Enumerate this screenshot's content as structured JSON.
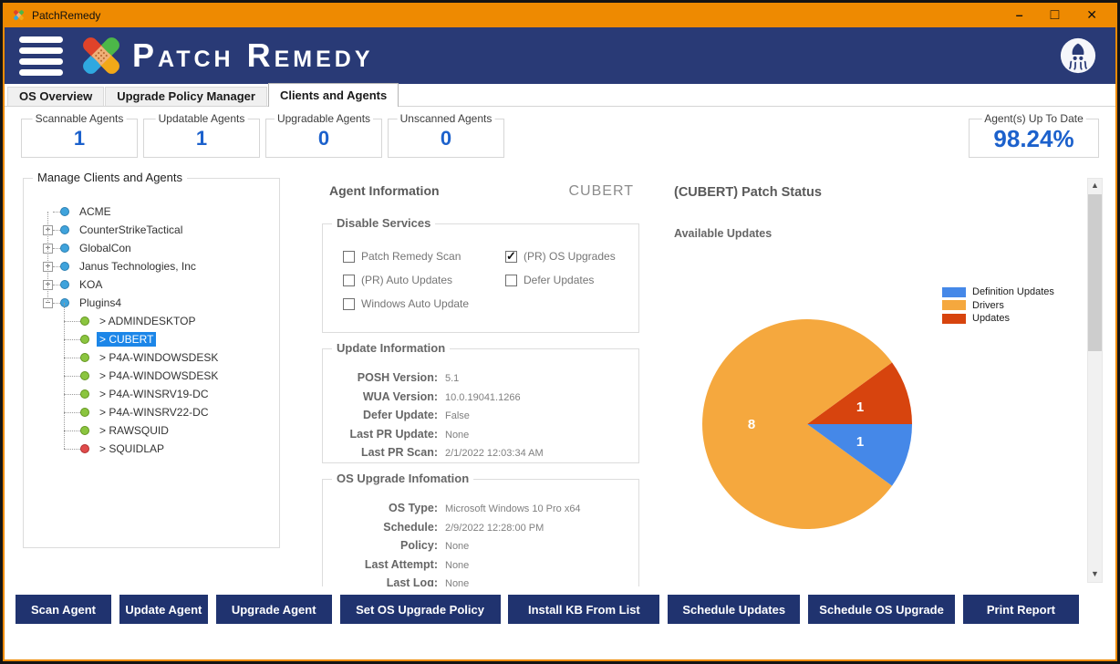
{
  "window": {
    "title": "PatchRemedy"
  },
  "icons": {
    "minimize": "–",
    "maximize": "□",
    "close": "✕",
    "expand": "+",
    "collapse": "−",
    "check": "✓",
    "scroll_up": "▲",
    "scroll_down": "▼"
  },
  "header": {
    "brand": "Patch Remedy"
  },
  "tabs": [
    {
      "label": "OS Overview",
      "active": false
    },
    {
      "label": "Upgrade Policy Manager",
      "active": false
    },
    {
      "label": "Clients and Agents",
      "active": true
    }
  ],
  "stats": {
    "boxes": [
      {
        "label": "Scannable Agents",
        "value": "1"
      },
      {
        "label": "Updatable Agents",
        "value": "1"
      },
      {
        "label": "Upgradable Agents",
        "value": "0"
      },
      {
        "label": "Unscanned Agents",
        "value": "0"
      }
    ],
    "uptodate": {
      "label": "Agent(s) Up To Date",
      "value": "98.24%"
    }
  },
  "tree": {
    "title": "Manage Clients and Agents",
    "items": [
      {
        "label": "ACME",
        "level": 0,
        "dot": "blue",
        "expand": null,
        "selected": false
      },
      {
        "label": "CounterStrikeTactical",
        "level": 0,
        "dot": "blue",
        "expand": "plus",
        "selected": false
      },
      {
        "label": "GlobalCon",
        "level": 0,
        "dot": "blue",
        "expand": "plus",
        "selected": false
      },
      {
        "label": "Janus Technologies, Inc",
        "level": 0,
        "dot": "blue",
        "expand": "plus",
        "selected": false
      },
      {
        "label": "KOA",
        "level": 0,
        "dot": "blue",
        "expand": "plus",
        "selected": false
      },
      {
        "label": "Plugins4",
        "level": 0,
        "dot": "blue",
        "expand": "minus",
        "selected": false
      },
      {
        "label": "> ADMINDESKTOP",
        "level": 1,
        "dot": "green",
        "expand": null,
        "selected": false
      },
      {
        "label": "> CUBERT",
        "level": 1,
        "dot": "green",
        "expand": null,
        "selected": true
      },
      {
        "label": "> P4A-WINDOWSDESK",
        "level": 1,
        "dot": "green",
        "expand": null,
        "selected": false
      },
      {
        "label": "> P4A-WINDOWSDESK",
        "level": 1,
        "dot": "green",
        "expand": null,
        "selected": false
      },
      {
        "label": "> P4A-WINSRV19-DC",
        "level": 1,
        "dot": "green",
        "expand": null,
        "selected": false
      },
      {
        "label": "> P4A-WINSRV22-DC",
        "level": 1,
        "dot": "green",
        "expand": null,
        "selected": false
      },
      {
        "label": "> RAWSQUID",
        "level": 1,
        "dot": "green",
        "expand": null,
        "selected": false
      },
      {
        "label": "> SQUIDLAP",
        "level": 1,
        "dot": "red",
        "expand": null,
        "selected": false
      }
    ]
  },
  "agent": {
    "title": "Agent Information",
    "name": "CUBERT",
    "disable_services": {
      "title": "Disable Services",
      "items": [
        {
          "label": "Patch Remedy Scan",
          "checked": false
        },
        {
          "label": "(PR) Auto Updates",
          "checked": false
        },
        {
          "label": "Windows Auto Update",
          "checked": false
        },
        {
          "label": "(PR) OS Upgrades",
          "checked": true
        },
        {
          "label": "Defer Updates",
          "checked": false
        }
      ]
    },
    "update_info": {
      "title": "Update Information",
      "fields": [
        {
          "label": "POSH Version:",
          "value": "5.1"
        },
        {
          "label": "WUA Version:",
          "value": "10.0.19041.1266"
        },
        {
          "label": "Defer Update:",
          "value": "False"
        },
        {
          "label": "Last PR Update:",
          "value": "None"
        },
        {
          "label": "Last PR Scan:",
          "value": "2/1/2022 12:03:34 AM"
        }
      ]
    },
    "os_upgrade": {
      "title": "OS Upgrade Infomation",
      "fields": [
        {
          "label": "OS Type:",
          "value": "Microsoft Windows 10 Pro x64"
        },
        {
          "label": "Schedule:",
          "value": "2/9/2022 12:28:00 PM"
        },
        {
          "label": "Policy:",
          "value": "None"
        },
        {
          "label": "Last Attempt:",
          "value": "None"
        },
        {
          "label": "Last Log:",
          "value": "None"
        }
      ]
    }
  },
  "patch_status": {
    "title": "(CUBERT) Patch Status",
    "chart_data": {
      "type": "pie",
      "title": "Available Updates",
      "legend_position": "right",
      "labels": [
        "Definition Updates",
        "Drivers",
        "Updates"
      ],
      "values": [
        1,
        8,
        1
      ],
      "colors": [
        "#4588E8",
        "#F5A83E",
        "#D7440E"
      ]
    }
  },
  "footer": {
    "buttons": [
      "Scan Agent",
      "Update Agent",
      "Upgrade Agent",
      "Set OS Upgrade Policy",
      "Install KB From List",
      "Schedule Updates",
      "Schedule OS Upgrade",
      "Print Report"
    ],
    "widths": [
      105,
      97,
      127,
      176,
      166,
      145,
      161,
      127
    ]
  },
  "colors": {
    "accent_orange": "#EE8A01",
    "header_navy": "#293A76",
    "button_navy": "#20336F",
    "stat_blue": "#1C61CC",
    "selection_blue": "#1C86E8"
  }
}
